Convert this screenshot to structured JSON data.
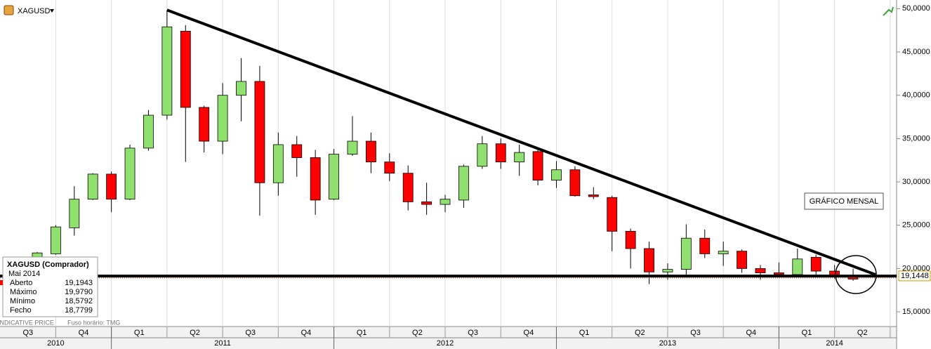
{
  "header": {
    "symbol": "XAGUSD"
  },
  "chart_data": {
    "type": "candlestick",
    "open": [
      19.6,
      21.7,
      24.7,
      28.0,
      30.9,
      28.0,
      33.9,
      37.7,
      47.4,
      38.6,
      34.7,
      40.0,
      41.6,
      29.9,
      34.3,
      32.8,
      28.0,
      33.2,
      34.7,
      32.3,
      31.0,
      27.7,
      27.4,
      27.9,
      31.8,
      34.4,
      32.3,
      33.5,
      30.2,
      31.4,
      28.5,
      28.2,
      24.3,
      22.3,
      19.6,
      19.9,
      23.5,
      21.7,
      22.0,
      20.0,
      19.5,
      19.3,
      21.3,
      19.7,
      19.1943
    ],
    "high": [
      21.9,
      25.0,
      29.5,
      31.0,
      31.2,
      34.3,
      38.3,
      49.8,
      48.1,
      38.8,
      41.4,
      44.3,
      43.4,
      35.7,
      35.3,
      33.7,
      33.8,
      37.6,
      35.7,
      33.3,
      31.9,
      29.9,
      28.5,
      32.0,
      35.3,
      35.0,
      34.3,
      34.0,
      32.4,
      31.8,
      29.4,
      28.4,
      24.6,
      23.1,
      20.6,
      25.1,
      24.5,
      23.1,
      22.2,
      20.4,
      20.7,
      22.3,
      21.6,
      20.4,
      19.979
    ],
    "low": [
      19.5,
      21.6,
      23.8,
      27.9,
      26.5,
      27.9,
      33.6,
      37.2,
      32.3,
      33.4,
      33.2,
      37.0,
      26.1,
      28.4,
      30.6,
      26.2,
      27.9,
      33.0,
      31.0,
      30.1,
      26.7,
      26.2,
      26.5,
      27.0,
      31.5,
      31.5,
      30.7,
      29.6,
      29.3,
      28.3,
      28.0,
      22.0,
      20.0,
      18.2,
      18.7,
      19.2,
      21.2,
      20.3,
      19.5,
      18.7,
      19.2,
      19.2,
      19.3,
      18.8,
      18.5792
    ],
    "close": [
      21.8,
      24.8,
      28.0,
      30.9,
      28.0,
      33.9,
      37.7,
      47.9,
      38.6,
      34.7,
      40.0,
      41.6,
      29.9,
      34.3,
      32.8,
      27.9,
      33.2,
      34.7,
      32.3,
      31.0,
      27.7,
      27.4,
      28.0,
      31.8,
      34.4,
      32.3,
      33.4,
      30.2,
      31.4,
      28.4,
      28.3,
      24.3,
      22.3,
      19.6,
      19.9,
      23.5,
      21.7,
      22.0,
      20.0,
      19.5,
      19.3,
      21.1,
      19.7,
      19.1,
      18.7799
    ],
    "colors": {
      "up": "#90e070",
      "down": "#ff0000"
    },
    "ylim": [
      13.3,
      51
    ],
    "yticks": [
      {
        "value": 15,
        "label": "15,0000"
      },
      {
        "value": 20,
        "label": "20,0000"
      },
      {
        "value": 25,
        "label": "25,0000"
      },
      {
        "value": 30,
        "label": "30,0000"
      },
      {
        "value": 35,
        "label": "35,0000"
      },
      {
        "value": 40,
        "label": "40,0000"
      },
      {
        "value": 45,
        "label": "45,0000"
      },
      {
        "value": 50,
        "label": "50,0000"
      }
    ],
    "quarters": [
      "Q3",
      "Q4",
      "Q1",
      "Q2",
      "Q3",
      "Q4",
      "Q1",
      "Q2",
      "Q3",
      "Q4",
      "Q1",
      "Q2",
      "Q3",
      "Q4",
      "Q1",
      "Q2"
    ],
    "years": [
      "2010",
      "2011",
      "2012",
      "2013",
      "2014"
    ],
    "last_price": {
      "value": 19.1448,
      "label": "19,1448"
    },
    "support_level": 19.13,
    "trendline": {
      "x": [
        7,
        45.2
      ],
      "y": [
        49.84,
        19.3
      ]
    },
    "annotation": "GRÁFICO MENSAL"
  },
  "info_box": {
    "title": "XAGUSD (Comprador)",
    "period": "Mai 2014",
    "rows": [
      {
        "label": "Aberto",
        "value": "19,1943"
      },
      {
        "label": "Máximo",
        "value": "19,9790"
      },
      {
        "label": "Mínimo",
        "value": "18,5792"
      },
      {
        "label": "Fecho",
        "value": "18,7799"
      }
    ]
  },
  "footer": {
    "source": "INDICATIVE PRICE",
    "timezone": "Fuso horário: TMG"
  }
}
